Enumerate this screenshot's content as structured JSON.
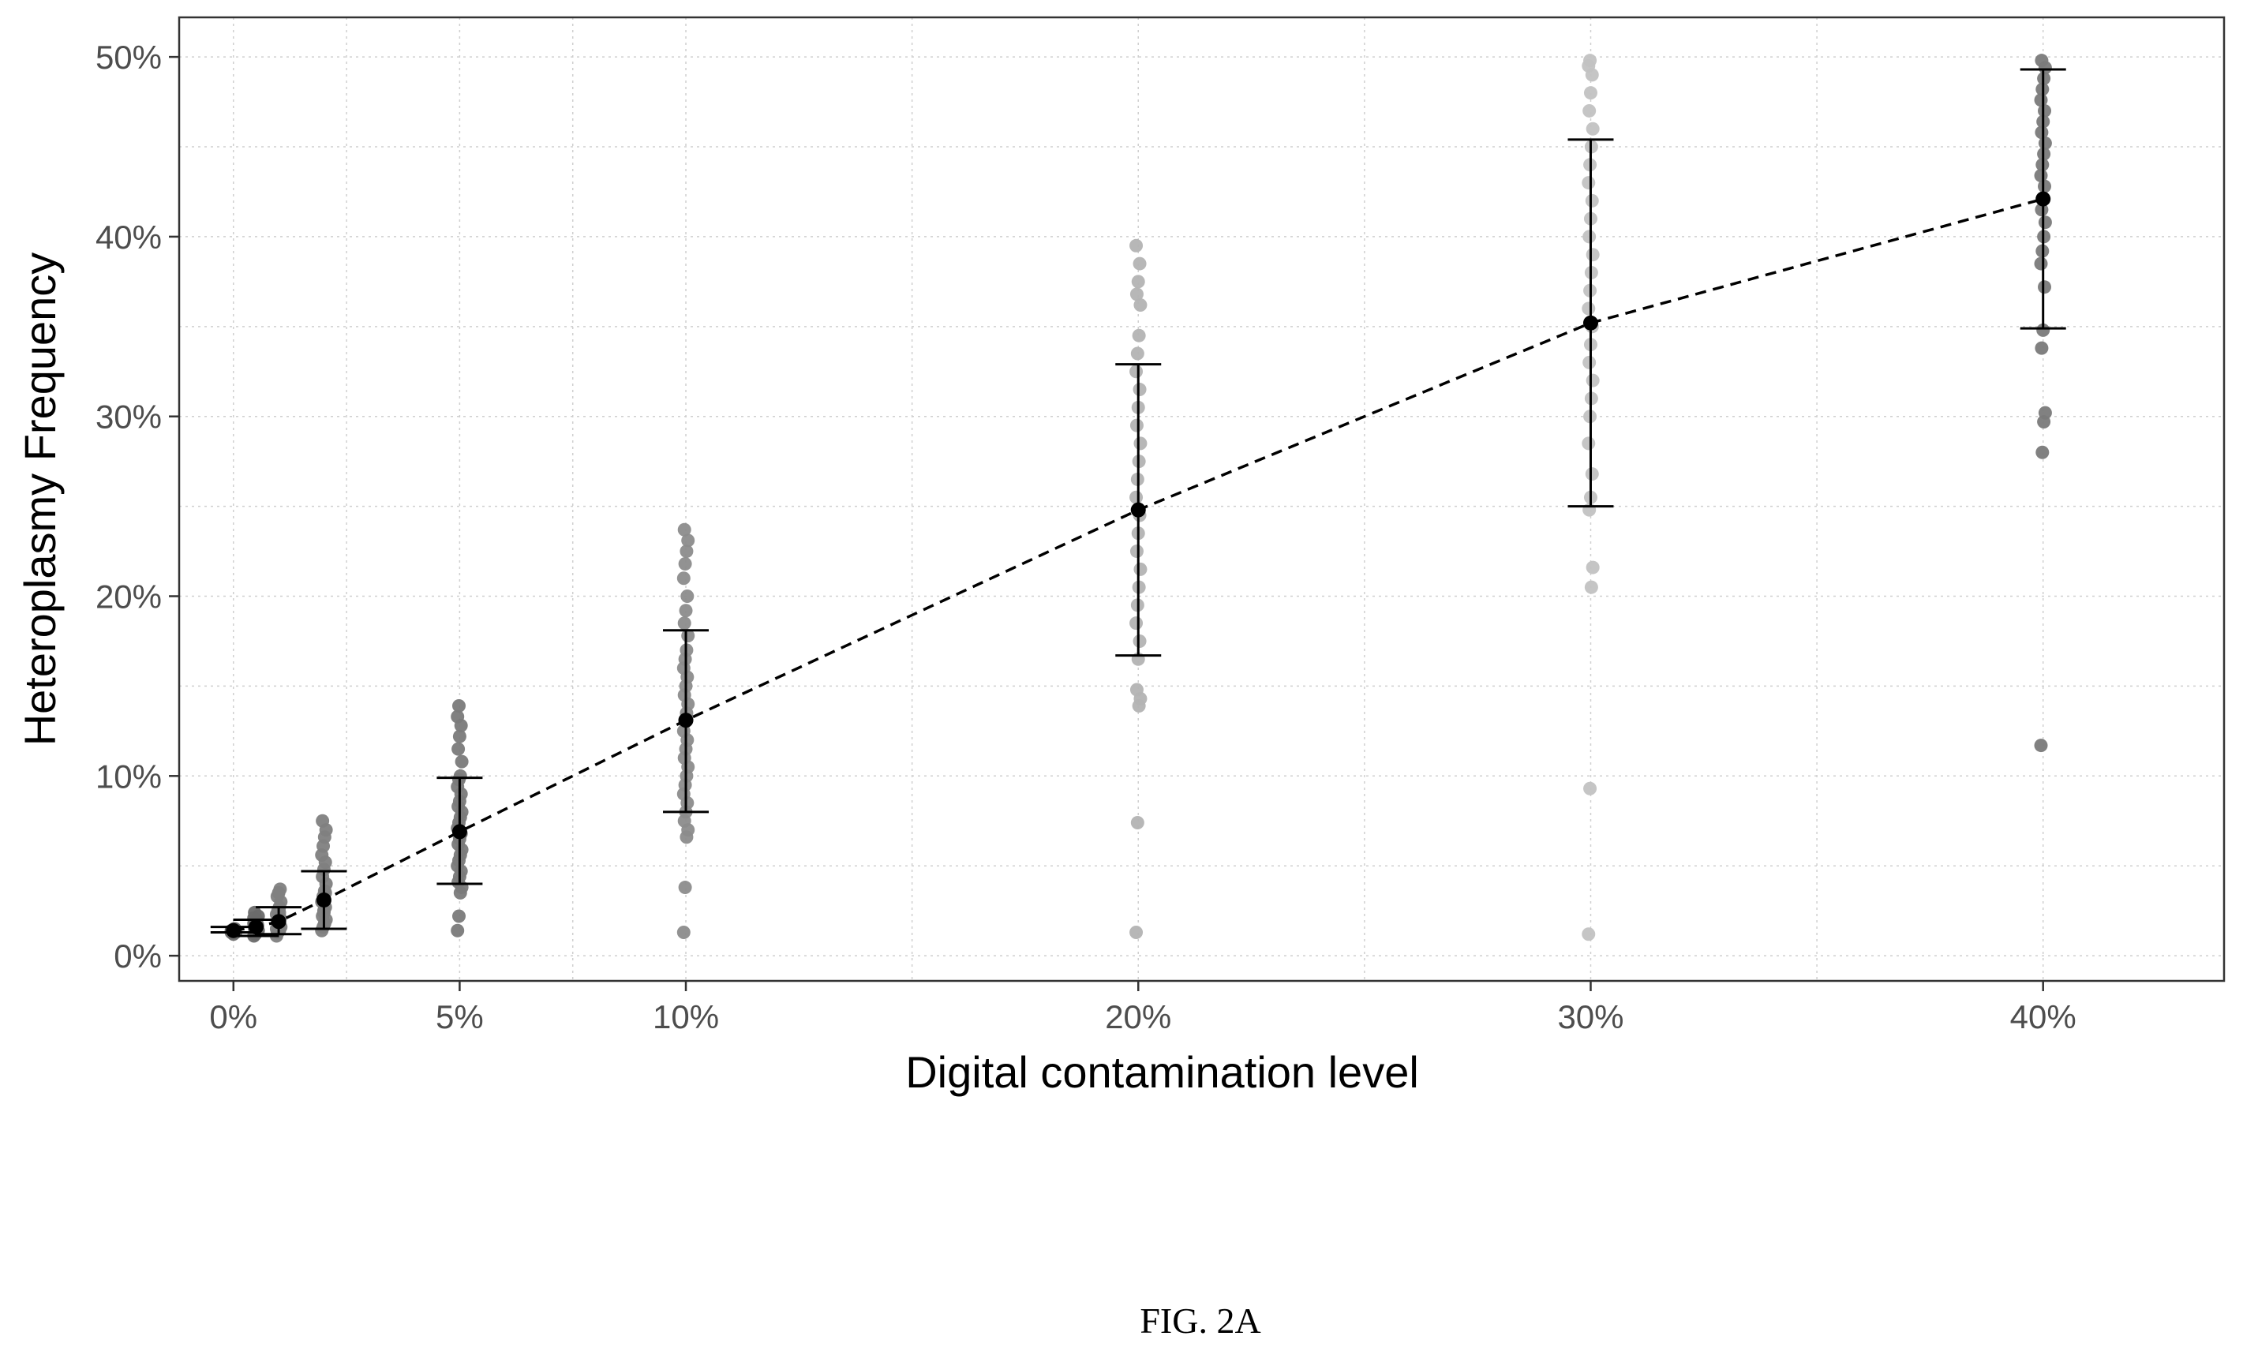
{
  "figure_label": "FIG. 2A",
  "chart_data": {
    "type": "scatter",
    "xlabel": "Digital contamination level",
    "ylabel": "Heteroplasmy Frequency",
    "xlim": [
      -0.012,
      0.44
    ],
    "ylim": [
      -0.014,
      0.522
    ],
    "x_ticks": [
      0,
      0.05,
      0.1,
      0.2,
      0.3,
      0.4
    ],
    "x_tick_labels": [
      "0%",
      "5%",
      "10%",
      "20%",
      "30%",
      "40%"
    ],
    "y_ticks": [
      0,
      0.1,
      0.2,
      0.3,
      0.4,
      0.5
    ],
    "y_tick_labels": [
      "0%",
      "10%",
      "20%",
      "30%",
      "40%",
      "50%"
    ],
    "grid": "dotted major and minor",
    "legend": "none",
    "mean_line_style": "dashed",
    "groups": [
      {
        "x": 0.0,
        "mean": 0.014,
        "lower": 0.013,
        "upper": 0.016,
        "color": "#6b6b6b",
        "points": [
          0.013,
          0.014,
          0.015,
          0.013,
          0.014,
          0.012,
          0.015,
          0.014
        ]
      },
      {
        "x": 0.005,
        "mean": 0.016,
        "lower": 0.011,
        "upper": 0.02,
        "color": "#6b6b6b",
        "points": [
          0.011,
          0.012,
          0.013,
          0.014,
          0.015,
          0.016,
          0.017,
          0.018,
          0.019,
          0.02,
          0.022,
          0.024,
          0.013,
          0.016,
          0.021
        ]
      },
      {
        "x": 0.01,
        "mean": 0.019,
        "lower": 0.012,
        "upper": 0.027,
        "color": "#7f7f7f",
        "points": [
          0.011,
          0.013,
          0.014,
          0.016,
          0.018,
          0.019,
          0.021,
          0.023,
          0.025,
          0.027,
          0.03,
          0.033,
          0.035,
          0.037,
          0.015,
          0.02,
          0.024
        ]
      },
      {
        "x": 0.02,
        "mean": 0.031,
        "lower": 0.015,
        "upper": 0.047,
        "color": "#7f7f7f",
        "points": [
          0.014,
          0.016,
          0.018,
          0.02,
          0.022,
          0.024,
          0.027,
          0.03,
          0.033,
          0.036,
          0.04,
          0.044,
          0.048,
          0.052,
          0.056,
          0.061,
          0.066,
          0.07,
          0.075,
          0.025,
          0.035
        ]
      },
      {
        "x": 0.05,
        "mean": 0.069,
        "lower": 0.04,
        "upper": 0.099,
        "color": "#7a7a7a",
        "points": [
          0.014,
          0.022,
          0.035,
          0.038,
          0.041,
          0.044,
          0.047,
          0.05,
          0.053,
          0.056,
          0.059,
          0.062,
          0.065,
          0.068,
          0.071,
          0.074,
          0.077,
          0.08,
          0.083,
          0.086,
          0.09,
          0.094,
          0.098,
          0.1,
          0.108,
          0.115,
          0.122,
          0.128,
          0.133,
          0.139
        ]
      },
      {
        "x": 0.1,
        "mean": 0.131,
        "lower": 0.08,
        "upper": 0.181,
        "color": "#8c8c8c",
        "points": [
          0.013,
          0.038,
          0.066,
          0.07,
          0.075,
          0.08,
          0.085,
          0.09,
          0.095,
          0.1,
          0.105,
          0.11,
          0.115,
          0.12,
          0.125,
          0.13,
          0.135,
          0.14,
          0.145,
          0.15,
          0.155,
          0.16,
          0.165,
          0.17,
          0.178,
          0.185,
          0.192,
          0.2,
          0.21,
          0.218,
          0.225,
          0.231,
          0.237
        ]
      },
      {
        "x": 0.2,
        "mean": 0.248,
        "lower": 0.167,
        "upper": 0.329,
        "color": "#b3b3b3",
        "points": [
          0.013,
          0.074,
          0.139,
          0.143,
          0.148,
          0.165,
          0.175,
          0.185,
          0.195,
          0.205,
          0.215,
          0.225,
          0.235,
          0.245,
          0.255,
          0.265,
          0.275,
          0.285,
          0.295,
          0.305,
          0.315,
          0.325,
          0.335,
          0.345,
          0.362,
          0.368,
          0.375,
          0.385,
          0.395
        ]
      },
      {
        "x": 0.3,
        "mean": 0.352,
        "lower": 0.25,
        "upper": 0.454,
        "color": "#c2c2c2",
        "points": [
          0.012,
          0.093,
          0.205,
          0.216,
          0.248,
          0.255,
          0.268,
          0.285,
          0.3,
          0.31,
          0.32,
          0.33,
          0.34,
          0.35,
          0.36,
          0.37,
          0.38,
          0.39,
          0.4,
          0.41,
          0.42,
          0.43,
          0.44,
          0.45,
          0.46,
          0.47,
          0.48,
          0.49,
          0.495,
          0.498
        ]
      },
      {
        "x": 0.4,
        "mean": 0.421,
        "lower": 0.349,
        "upper": 0.493,
        "color": "#7a7a7a",
        "points": [
          0.117,
          0.28,
          0.297,
          0.302,
          0.338,
          0.348,
          0.372,
          0.385,
          0.392,
          0.4,
          0.408,
          0.415,
          0.421,
          0.428,
          0.434,
          0.44,
          0.446,
          0.452,
          0.458,
          0.464,
          0.47,
          0.476,
          0.482,
          0.488,
          0.494,
          0.498
        ]
      }
    ]
  }
}
